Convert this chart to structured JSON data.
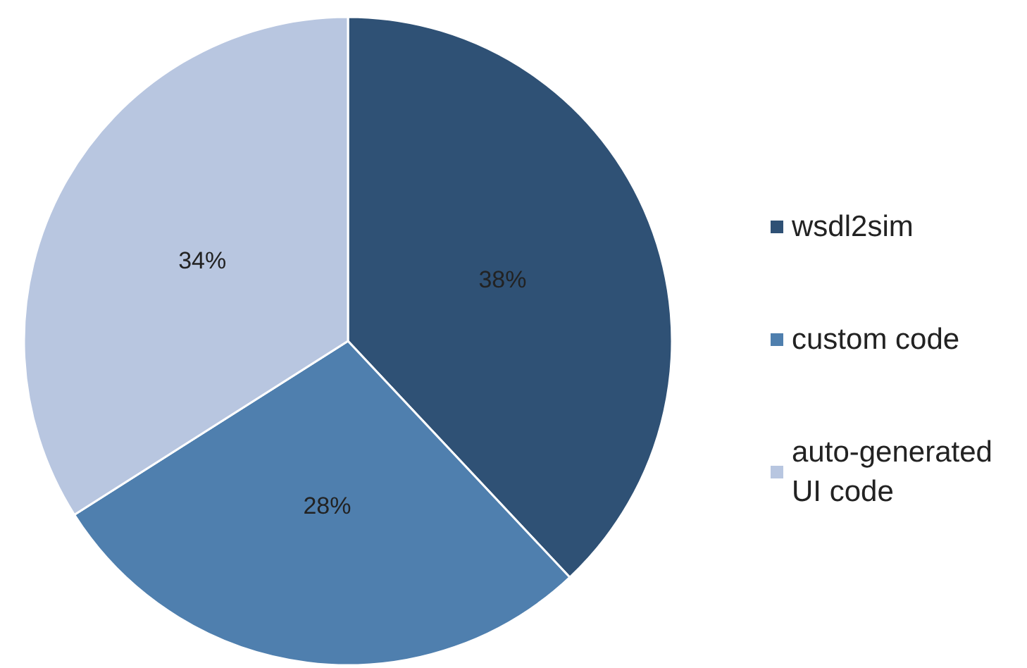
{
  "chart_data": {
    "type": "pie",
    "categories": [
      "wsdl2sim",
      "custom code",
      "auto-generated UI code"
    ],
    "values": [
      38,
      28,
      34
    ],
    "colors": [
      "#2f5175",
      "#4f7fae",
      "#b8c6e0"
    ],
    "value_labels": [
      "38%",
      "28%",
      "34%"
    ],
    "legend": "right"
  }
}
